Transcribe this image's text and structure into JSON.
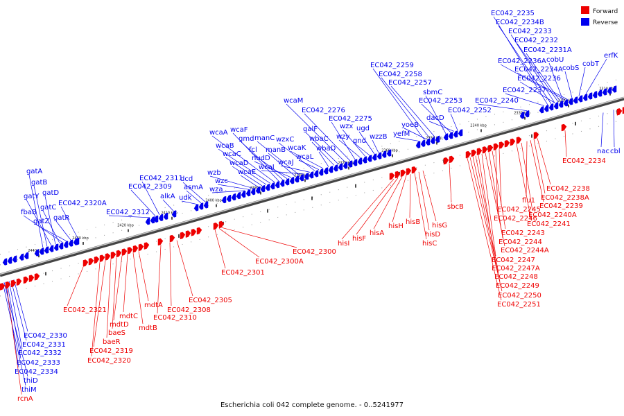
{
  "caption": "Escherichia coli 042 complete genome. - 0..5241977",
  "legend": [
    {
      "label": "Forward",
      "color": "#ee0000"
    },
    {
      "label": "Reverse",
      "color": "#0000ee"
    }
  ],
  "colors": {
    "forward": "#ee0000",
    "reverse": "#0000ee",
    "axis": "#808080",
    "tick": "#000000"
  },
  "ticks": [
    "2310 kbp",
    "2320 kbp",
    "2330 kbp",
    "2340 kbp",
    "2350 kbp",
    "2360 kbp",
    "2370 kbp",
    "2380 kbp",
    "2390 kbp",
    "2400 kbp",
    "2410 kbp",
    "2420 kbp",
    "2430 kbp",
    "2440 kbp"
  ],
  "reverse_labels_top": [
    "EC042_2235",
    "EC042_2234B",
    "EC042_2233",
    "EC042_2232",
    "EC042_2231A",
    "cobU",
    "EC042_2236A",
    "EC042_2234A",
    "cobS",
    "cobT",
    "erfK",
    "EC042_2236",
    "EC042_2237",
    "EC042_2240",
    "EC042_2252",
    "EC042_2253",
    "dacD",
    "sbmC",
    "EC042_2257",
    "EC042_2258",
    "EC042_2259",
    "yoeB",
    "yefM",
    "wzzB",
    "ugd",
    "gnd",
    "wzx",
    "wzy",
    "EC042_2275",
    "EC042_2276",
    "wcaM",
    "galF",
    "wbaC",
    "wbaD",
    "wcaK",
    "wcaL",
    "wzxC",
    "wcaJ",
    "wcaI",
    "manC",
    "manB",
    "nudD",
    "fcl",
    "gmd",
    "wcaF",
    "wcaA",
    "wcaB",
    "wcaC",
    "wcaD",
    "wcaE",
    "wzb",
    "wzc",
    "wza",
    "dcd",
    "asmA",
    "udk",
    "alkA",
    "EC042_2311",
    "EC042_2309",
    "EC042_2312",
    "gatA",
    "gatB",
    "gatY",
    "gatD",
    "gatC",
    "fbaB",
    "gatZ",
    "gatR",
    "EC042_2320A"
  ],
  "reverse_labels_bottom": [
    "nac",
    "cbl",
    "EC042_2330",
    "EC042_2331",
    "EC042_2332",
    "EC042_2333",
    "EC042_2334",
    "thiD",
    "thiM"
  ],
  "forward_labels": [
    "EC042_2234",
    "EC042_2238",
    "EC042_2238A",
    "flu1",
    "EC042_2239",
    "EC042_2240A",
    "EC042_2241",
    "EC042_2245",
    "EC042_2246",
    "EC042_2243",
    "EC042_2244",
    "EC042_2244A",
    "EC042_2247",
    "EC042_2247A",
    "EC042_2248",
    "EC042_2249",
    "EC042_2250",
    "EC042_2251",
    "sbcB",
    "hisG",
    "hisD",
    "hisC",
    "hisB",
    "hisH",
    "hisA",
    "hisF",
    "hisI",
    "EC042_2300",
    "EC042_2300A",
    "EC042_2301",
    "EC042_2305",
    "EC042_2308",
    "EC042_2310",
    "mdtA",
    "mdtB",
    "mdtC",
    "mdtD",
    "baeS",
    "baeR",
    "EC042_2319",
    "EC042_2320",
    "EC042_2321",
    "rcnA"
  ]
}
